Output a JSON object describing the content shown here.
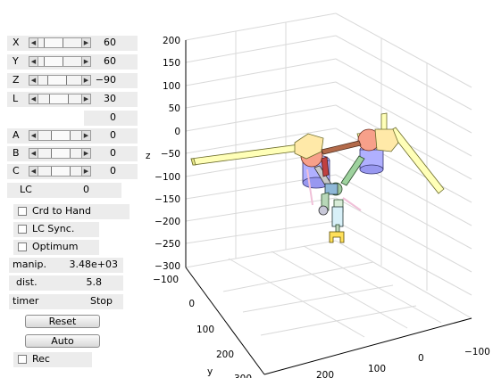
{
  "controls": {
    "sliders": [
      {
        "label": "X",
        "value": "60"
      },
      {
        "label": "Y",
        "value": "60"
      },
      {
        "label": "Z",
        "value": "−90"
      },
      {
        "label": "L",
        "value": "30"
      }
    ],
    "extra_value": "0",
    "angles": [
      {
        "label": "A",
        "value": "0"
      },
      {
        "label": "B",
        "value": "0"
      },
      {
        "label": "C",
        "value": "0"
      }
    ],
    "lc": {
      "label": "LC",
      "value": "0"
    },
    "checkboxes": {
      "crd_to_hand": "Crd to Hand",
      "lc_sync": "LC Sync.",
      "optimum": "Optimum",
      "rec": "Rec"
    },
    "manip": {
      "label": "manip.",
      "value": "3.48e+03"
    },
    "dist": {
      "label": "dist.",
      "value": "5.8"
    },
    "timer": {
      "label": "timer",
      "value": "Stop"
    },
    "buttons": {
      "reset": "Reset",
      "auto": "Auto"
    }
  },
  "plot": {
    "z_axis_label": "z",
    "y_axis_label": "y",
    "z_ticks": [
      "200",
      "150",
      "100",
      "50",
      "0",
      "−50",
      "−100",
      "−150",
      "−200",
      "−250",
      "−300"
    ],
    "y_ticks": [
      "−100",
      "0",
      "100",
      "200",
      "300"
    ],
    "x_ticks": [
      "200",
      "100",
      "0",
      "−100"
    ]
  }
}
